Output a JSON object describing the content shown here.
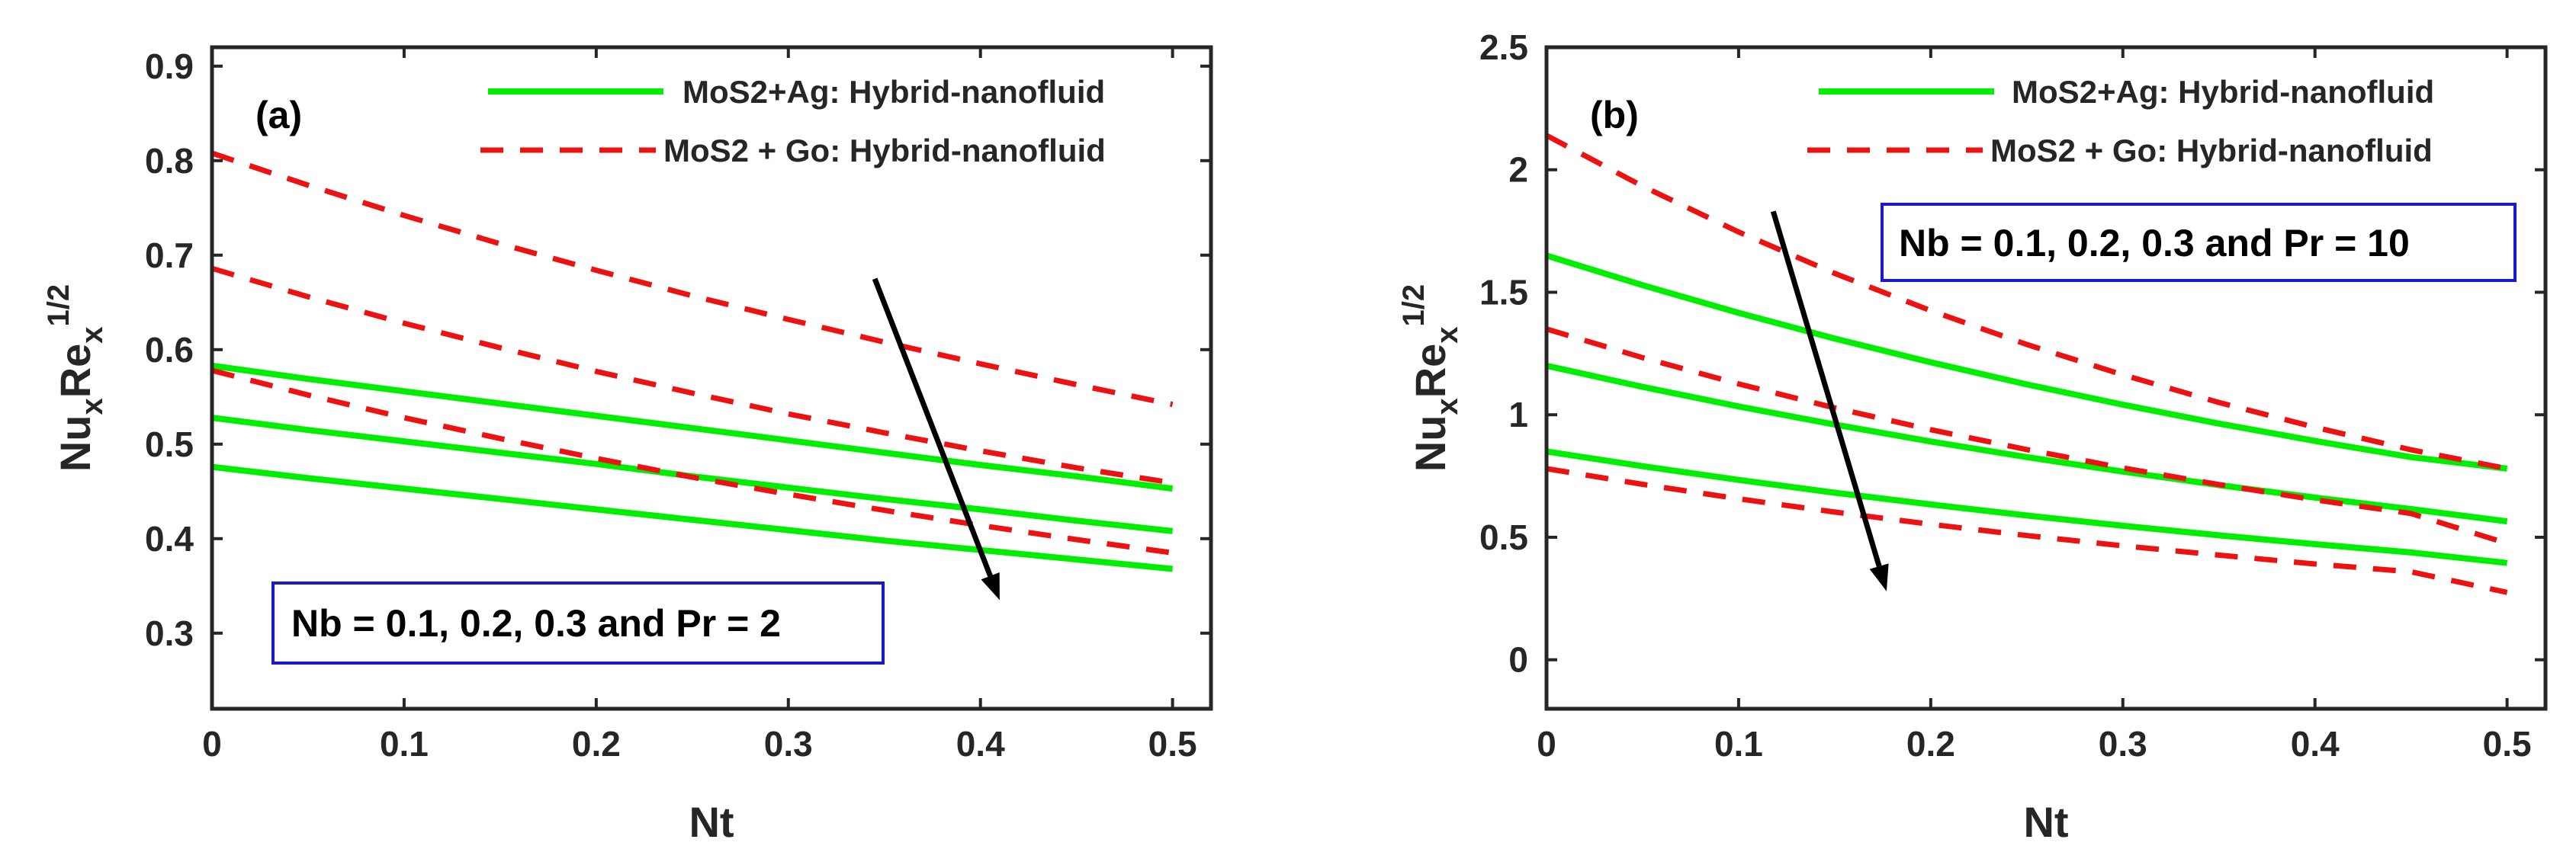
{
  "chart_data": [
    {
      "panel": "(a)",
      "type": "line",
      "xlabel": "Nt",
      "ylabel": "Nu_x Re_x^{1/2}",
      "xlim": [
        0,
        0.52
      ],
      "ylim": [
        0.22,
        0.92
      ],
      "xticks": [
        0,
        0.1,
        0.2,
        0.3,
        0.4,
        0.5
      ],
      "xtick_labels": [
        "0",
        "0.1",
        "0.2",
        "0.3",
        "0.4",
        "0.5"
      ],
      "yticks": [
        0.3,
        0.4,
        0.5,
        0.6,
        0.7,
        0.8,
        0.9
      ],
      "ytick_labels": [
        "0.3",
        "0.4",
        "0.5",
        "0.6",
        "0.7",
        "0.8",
        "0.9"
      ],
      "legend": [
        "MoS2+Ag: Hybrid-nanofluid",
        "MoS2 + Go: Hybrid-nanofluid"
      ],
      "legend_location": "top-right",
      "annotation": "Nb = 0.1, 0.2, 0.3 and Pr = 2",
      "arrow": {
        "from": [
          0.345,
          0.675
        ],
        "to": [
          0.41,
          0.335
        ]
      },
      "x": [
        0,
        0.05,
        0.1,
        0.15,
        0.2,
        0.25,
        0.3,
        0.35,
        0.4,
        0.45,
        0.5
      ],
      "series": [
        {
          "name": "MoS2+Ag: Hybrid-nanofluid",
          "group": "ag",
          "Nb": 0.1,
          "values": [
            0.583,
            0.569,
            0.556,
            0.543,
            0.53,
            0.517,
            0.504,
            0.491,
            0.478,
            0.466,
            0.453
          ]
        },
        {
          "name": "MoS2+Ag: Hybrid-nanofluid",
          "group": "ag",
          "Nb": 0.2,
          "values": [
            0.528,
            0.515,
            0.503,
            0.491,
            0.479,
            0.466,
            0.454,
            0.442,
            0.431,
            0.419,
            0.408
          ]
        },
        {
          "name": "MoS2+Ag: Hybrid-nanofluid",
          "group": "ag",
          "Nb": 0.3,
          "values": [
            0.476,
            0.464,
            0.453,
            0.442,
            0.431,
            0.42,
            0.409,
            0.398,
            0.388,
            0.378,
            0.368
          ]
        },
        {
          "name": "MoS2 + Go: Hybrid-nanofluid",
          "group": "go",
          "Nb": 0.1,
          "values": [
            0.808,
            0.774,
            0.742,
            0.712,
            0.684,
            0.657,
            0.632,
            0.608,
            0.585,
            0.563,
            0.542
          ]
        },
        {
          "name": "MoS2 + Go: Hybrid-nanofluid",
          "group": "go",
          "Nb": 0.2,
          "values": [
            0.686,
            0.656,
            0.628,
            0.602,
            0.577,
            0.554,
            0.532,
            0.512,
            0.493,
            0.475,
            0.459
          ]
        },
        {
          "name": "MoS2 + Go: Hybrid-nanofluid",
          "group": "go",
          "Nb": 0.3,
          "values": [
            0.578,
            0.552,
            0.528,
            0.506,
            0.485,
            0.465,
            0.447,
            0.43,
            0.414,
            0.399,
            0.385
          ]
        }
      ]
    },
    {
      "panel": "(b)",
      "type": "line",
      "xlabel": "Nt",
      "ylabel": "Nu_x Re_x^{1/2}",
      "xlim": [
        0,
        0.52
      ],
      "ylim": [
        -0.2,
        2.5
      ],
      "xticks": [
        0,
        0.1,
        0.2,
        0.3,
        0.4,
        0.5
      ],
      "xtick_labels": [
        "0",
        "0.1",
        "0.2",
        "0.3",
        "0.4",
        "0.5"
      ],
      "yticks": [
        0,
        0.5,
        1,
        1.5,
        2,
        2.5
      ],
      "ytick_labels": [
        "0",
        "0.5",
        "1",
        "1.5",
        "2",
        "2.5"
      ],
      "legend": [
        "MoS2+Ag: Hybrid-nanofluid",
        "MoS2 + Go: Hybrid-nanofluid"
      ],
      "legend_location": "top-right",
      "annotation": "Nb = 0.1, 0.2, 0.3 and Pr = 10",
      "arrow": {
        "from": [
          0.118,
          1.83
        ],
        "to": [
          0.177,
          0.28
        ]
      },
      "x": [
        0,
        0.05,
        0.1,
        0.15,
        0.2,
        0.25,
        0.3,
        0.35,
        0.4,
        0.45,
        0.5
      ],
      "series": [
        {
          "name": "MoS2+Ag: Hybrid-nanofluid",
          "group": "ag",
          "Nb": 0.1,
          "values": [
            1.65,
            1.529,
            1.416,
            1.311,
            1.214,
            1.124,
            1.041,
            0.964,
            0.893,
            0.827,
            0.78
          ]
        },
        {
          "name": "MoS2+Ag: Hybrid-nanofluid",
          "group": "ag",
          "Nb": 0.2,
          "values": [
            1.2,
            1.114,
            1.034,
            0.96,
            0.891,
            0.827,
            0.768,
            0.713,
            0.662,
            0.615,
            0.565
          ]
        },
        {
          "name": "MoS2+Ag: Hybrid-nanofluid",
          "group": "ag",
          "Nb": 0.3,
          "values": [
            0.85,
            0.79,
            0.734,
            0.682,
            0.634,
            0.589,
            0.547,
            0.508,
            0.472,
            0.438,
            0.395
          ]
        },
        {
          "name": "MoS2 + Go: Hybrid-nanofluid",
          "group": "go",
          "Nb": 0.1,
          "values": [
            2.14,
            1.933,
            1.746,
            1.577,
            1.425,
            1.287,
            1.163,
            1.05,
            0.949,
            0.857,
            0.78
          ]
        },
        {
          "name": "MoS2 + Go: Hybrid-nanofluid",
          "group": "go",
          "Nb": 0.2,
          "values": [
            1.35,
            1.233,
            1.126,
            1.028,
            0.939,
            0.858,
            0.783,
            0.715,
            0.653,
            0.597,
            0.475
          ]
        },
        {
          "name": "MoS2 + Go: Hybrid-nanofluid",
          "group": "go",
          "Nb": 0.3,
          "values": [
            0.78,
            0.716,
            0.657,
            0.603,
            0.553,
            0.507,
            0.465,
            0.427,
            0.391,
            0.359,
            0.275
          ]
        }
      ]
    }
  ],
  "colors": {
    "ag_line": "#00ee00",
    "go_line": "#ee1111",
    "annotation_border": "#1a1acc",
    "axis": "#262626",
    "arrow": "#000000"
  }
}
